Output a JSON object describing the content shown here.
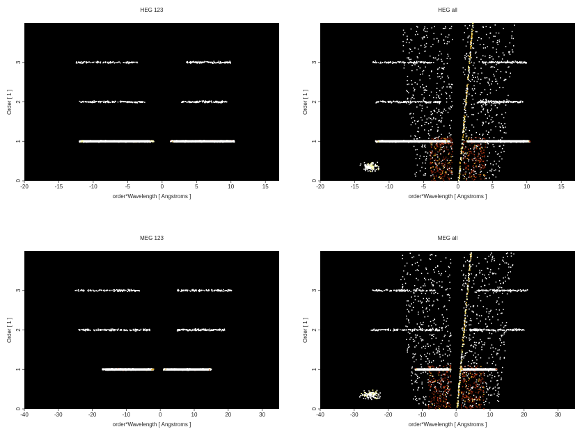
{
  "colors": {
    "background": "#000000",
    "dense": "#ffffff",
    "bright": "#ffff9a",
    "mid": "#e0b030",
    "faint": "#c0401a",
    "veryfaint": "#6a1808"
  },
  "chart_data": [
    {
      "type": "scatter",
      "title": "HEG 123",
      "xlabel": "order*Wavelength [ Angstroms ]",
      "ylabel": "Order [ 1 ]",
      "xlim": [
        -20,
        17
      ],
      "ylim": [
        0,
        4
      ],
      "xticks": [
        -20,
        -15,
        -10,
        -5,
        0,
        5,
        10,
        15
      ],
      "yticks": [
        0,
        1,
        2,
        3
      ],
      "bands": [
        {
          "order": 1,
          "x_range": [
            -12,
            -1.2
          ],
          "density": "high"
        },
        {
          "order": 1,
          "x_range": [
            1.2,
            10.5
          ],
          "density": "high"
        },
        {
          "order": 2,
          "x_range": [
            -12,
            -2.5
          ],
          "density": "medium"
        },
        {
          "order": 2,
          "x_range": [
            2.8,
            9.5
          ],
          "density": "medium"
        },
        {
          "order": 3,
          "x_range": [
            -12.5,
            -3.5
          ],
          "density": "low"
        },
        {
          "order": 3,
          "x_range": [
            3.5,
            10
          ],
          "density": "low"
        }
      ],
      "background_events": false
    },
    {
      "type": "scatter",
      "title": "HEG all",
      "xlabel": "order*Wavelength [ Angstroms ]",
      "ylabel": "Order [ 1 ]",
      "xlim": [
        -20,
        17
      ],
      "ylim": [
        0,
        4
      ],
      "xticks": [
        -20,
        -15,
        -10,
        -5,
        0,
        5,
        10,
        15
      ],
      "yticks": [
        0,
        1,
        2,
        3
      ],
      "bands": [
        {
          "order": 1,
          "x_range": [
            -12,
            -1.2
          ],
          "density": "high"
        },
        {
          "order": 1,
          "x_range": [
            1.2,
            10.5
          ],
          "density": "high"
        },
        {
          "order": 2,
          "x_range": [
            -12,
            -2.5
          ],
          "density": "medium"
        },
        {
          "order": 2,
          "x_range": [
            2.8,
            9.5
          ],
          "density": "medium"
        },
        {
          "order": 3,
          "x_range": [
            -12.5,
            -3.5
          ],
          "density": "low"
        },
        {
          "order": 3,
          "x_range": [
            3.5,
            10
          ],
          "density": "low"
        }
      ],
      "background_events": true
    },
    {
      "type": "scatter",
      "title": "MEG 123",
      "xlabel": "order*Wavelength [ Angstroms ]",
      "ylabel": "Order [ 1 ]",
      "xlim": [
        -40,
        35
      ],
      "ylim": [
        0,
        4
      ],
      "xticks": [
        -40,
        -30,
        -20,
        -10,
        0,
        10,
        20,
        30
      ],
      "yticks": [
        0,
        1,
        2,
        3
      ],
      "bands": [
        {
          "order": 1,
          "x_range": [
            -17,
            -2
          ],
          "density": "high"
        },
        {
          "order": 1,
          "x_range": [
            1,
            15
          ],
          "density": "high"
        },
        {
          "order": 2,
          "x_range": [
            -24,
            -3
          ],
          "density": "medium"
        },
        {
          "order": 2,
          "x_range": [
            5,
            19
          ],
          "density": "medium"
        },
        {
          "order": 3,
          "x_range": [
            -25,
            -6
          ],
          "density": "low"
        },
        {
          "order": 3,
          "x_range": [
            5,
            21
          ],
          "density": "low"
        }
      ],
      "background_events": false
    },
    {
      "type": "scatter",
      "title": "MEG all",
      "xlabel": "order*Wavelength [ Angstroms ]",
      "ylabel": "Order [ 1 ]",
      "xlim": [
        -40,
        35
      ],
      "ylim": [
        0,
        4
      ],
      "xticks": [
        -40,
        -30,
        -20,
        -10,
        0,
        10,
        20,
        30
      ],
      "yticks": [
        0,
        1,
        2,
        3
      ],
      "bands": [
        {
          "order": 1,
          "x_range": [
            -12,
            -1.5
          ],
          "density": "high"
        },
        {
          "order": 1,
          "x_range": [
            1.5,
            12
          ],
          "density": "high"
        },
        {
          "order": 2,
          "x_range": [
            -25,
            -4
          ],
          "density": "medium"
        },
        {
          "order": 2,
          "x_range": [
            4,
            20
          ],
          "density": "medium"
        },
        {
          "order": 3,
          "x_range": [
            -25,
            -6
          ],
          "density": "low"
        },
        {
          "order": 3,
          "x_range": [
            6,
            21
          ],
          "density": "low"
        }
      ],
      "background_events": true
    }
  ]
}
